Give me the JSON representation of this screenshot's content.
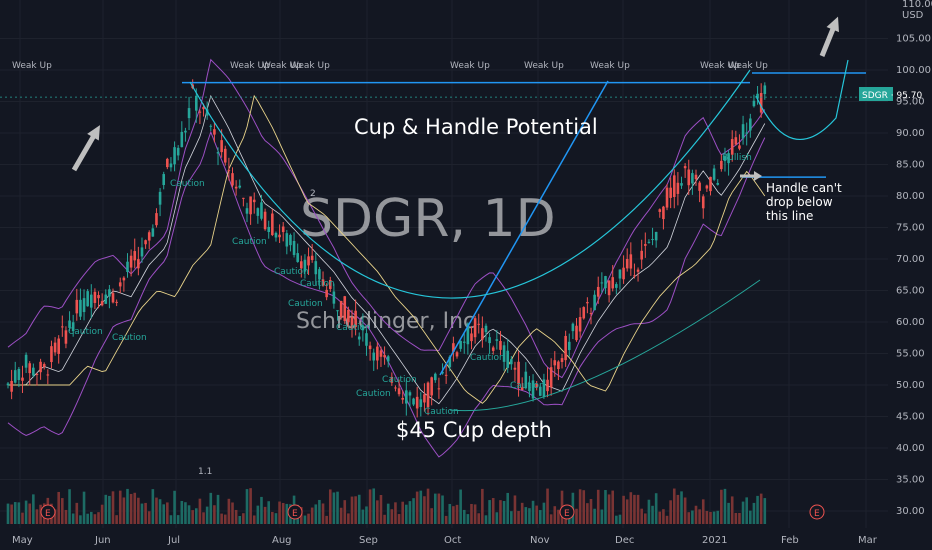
{
  "chart_data": {
    "type": "candlestick",
    "symbol": "SDGR",
    "timeframe": "1D",
    "watermark": "SDGR, 1D",
    "watermark_sub": "Schrodinger, Inc",
    "currency": "USD",
    "last_price_label": "SDGR · 95.70",
    "last_price": 95.7,
    "y_axis_top": "110.00",
    "ylim": [
      27,
      110
    ],
    "y_ticks": [
      "105.00",
      "100.00",
      "95.00",
      "90.00",
      "85.00",
      "80.00",
      "75.00",
      "70.00",
      "65.00",
      "60.00",
      "55.00",
      "50.00",
      "45.00",
      "40.00",
      "35.00",
      "30.00"
    ],
    "x_ticks": [
      "May",
      "Jun",
      "Jul",
      "Aug",
      "Sep",
      "Oct",
      "Nov",
      "Dec",
      "2021",
      "Feb",
      "Mar"
    ],
    "annotations": {
      "title": "Cup & Handle Potential",
      "depth": "$45 Cup depth",
      "handle": [
        "Handle can't",
        "drop below",
        "this line"
      ]
    },
    "signals": {
      "weak_up": "Weak Up",
      "caution": "Caution",
      "bullish": "Bullish",
      "misc_1": "1.1",
      "misc_2": "2",
      "earnings": "E"
    },
    "resistance_level": 98.0,
    "handle_floor": 83.0,
    "price_path": [
      {
        "t": 0.0,
        "p": 50
      },
      {
        "t": 0.02,
        "p": 53
      },
      {
        "t": 0.04,
        "p": 52
      },
      {
        "t": 0.06,
        "p": 57
      },
      {
        "t": 0.08,
        "p": 62
      },
      {
        "t": 0.1,
        "p": 65
      },
      {
        "t": 0.12,
        "p": 64
      },
      {
        "t": 0.14,
        "p": 69
      },
      {
        "t": 0.16,
        "p": 72
      },
      {
        "t": 0.18,
        "p": 84
      },
      {
        "t": 0.2,
        "p": 90
      },
      {
        "t": 0.21,
        "p": 96
      },
      {
        "t": 0.23,
        "p": 91
      },
      {
        "t": 0.25,
        "p": 85
      },
      {
        "t": 0.27,
        "p": 79
      },
      {
        "t": 0.29,
        "p": 77
      },
      {
        "t": 0.31,
        "p": 74
      },
      {
        "t": 0.33,
        "p": 71
      },
      {
        "t": 0.35,
        "p": 68
      },
      {
        "t": 0.37,
        "p": 64
      },
      {
        "t": 0.39,
        "p": 61
      },
      {
        "t": 0.41,
        "p": 57
      },
      {
        "t": 0.43,
        "p": 53
      },
      {
        "t": 0.45,
        "p": 49
      },
      {
        "t": 0.47,
        "p": 47
      },
      {
        "t": 0.49,
        "p": 51
      },
      {
        "t": 0.51,
        "p": 56
      },
      {
        "t": 0.53,
        "p": 59
      },
      {
        "t": 0.55,
        "p": 57
      },
      {
        "t": 0.57,
        "p": 54
      },
      {
        "t": 0.59,
        "p": 50
      },
      {
        "t": 0.61,
        "p": 49
      },
      {
        "t": 0.63,
        "p": 55
      },
      {
        "t": 0.65,
        "p": 60
      },
      {
        "t": 0.67,
        "p": 64
      },
      {
        "t": 0.69,
        "p": 67
      },
      {
        "t": 0.71,
        "p": 69
      },
      {
        "t": 0.73,
        "p": 72
      },
      {
        "t": 0.75,
        "p": 80
      },
      {
        "t": 0.77,
        "p": 84
      },
      {
        "t": 0.79,
        "p": 80
      },
      {
        "t": 0.81,
        "p": 84
      },
      {
        "t": 0.83,
        "p": 89
      },
      {
        "t": 0.85,
        "p": 94
      },
      {
        "t": 0.86,
        "p": 96
      }
    ]
  }
}
